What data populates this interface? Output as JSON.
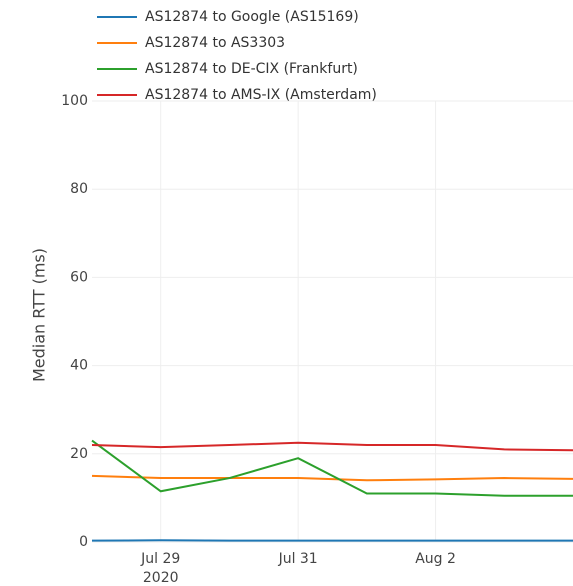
{
  "chart_data": {
    "type": "line",
    "ylabel": "Median RTT (ms)",
    "x": [
      "2020-07-28",
      "2020-07-29",
      "2020-07-30",
      "2020-07-31",
      "2020-08-01",
      "2020-08-02",
      "2020-08-03",
      "2020-08-04"
    ],
    "series": [
      {
        "name": "AS12874 to Google (AS15169)",
        "color": "#1f77b4",
        "values": [
          0.3,
          0.4,
          0.3,
          0.3,
          0.3,
          0.3,
          0.3,
          0.3
        ]
      },
      {
        "name": "AS12874 to AS3303",
        "color": "#ff7f0e",
        "values": [
          15,
          14.5,
          14.5,
          14.5,
          14,
          14.2,
          14.5,
          14.3
        ]
      },
      {
        "name": "AS12874 to DE-CIX (Frankfurt)",
        "color": "#2ca02c",
        "values": [
          23,
          11.5,
          14.5,
          19,
          11,
          11,
          10.5,
          10.5
        ]
      },
      {
        "name": "AS12874 to AMS-IX (Amsterdam)",
        "color": "#d62728",
        "values": [
          22,
          21.5,
          22,
          22.5,
          22,
          22,
          21,
          20.8
        ]
      }
    ],
    "xlim": [
      "2020-07-28",
      "2020-08-04"
    ],
    "xticks": [
      {
        "value": "2020-07-29",
        "label": "Jul 29"
      },
      {
        "value": "2020-07-31",
        "label": "Jul 31"
      },
      {
        "value": "2020-08-02",
        "label": "Aug 2"
      }
    ],
    "xtick_sublabel": "2020",
    "ylim": [
      0,
      100
    ],
    "yticks": [
      0,
      20,
      40,
      60,
      80,
      100
    ],
    "grid": true
  }
}
